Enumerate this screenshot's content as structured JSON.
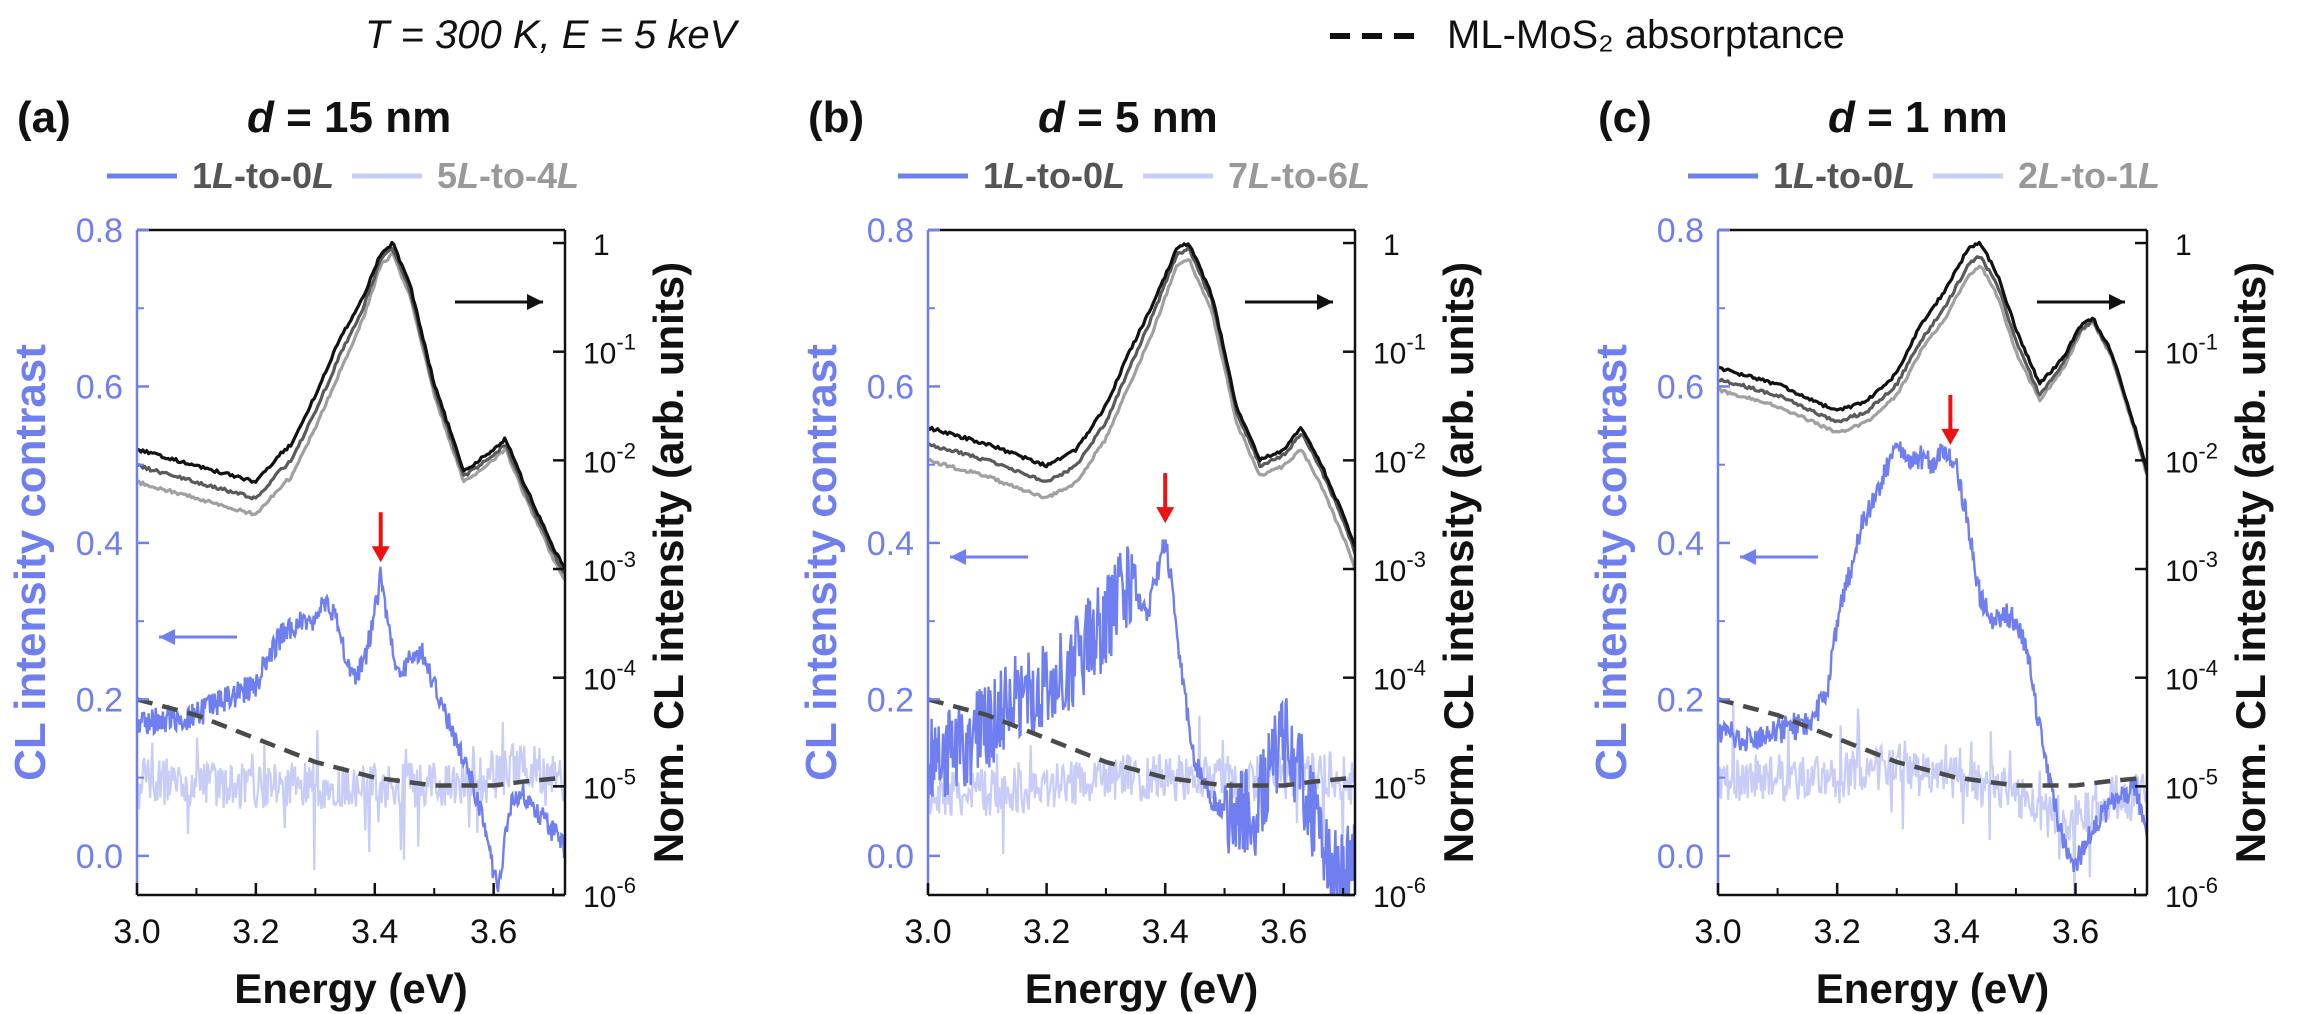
{
  "header": {
    "condition": "T = 300 K, E = 5 keV",
    "absorptance_legend": "ML-MoS₂ absorptance"
  },
  "colors": {
    "contrast_main": "#6f7ff0",
    "contrast_light": "#c7cdf7",
    "spectrum_dark": "#111111",
    "spectrum_mid": "#5a5a5a",
    "spectrum_light": "#a0a0a0",
    "absorptance": "#4a4a4a",
    "arrow_red": "#ee1111",
    "left_axis": "#6f7ff0"
  },
  "chart_data": [
    {
      "type": "line",
      "panel_label": "(a)",
      "title": "d = 15 nm",
      "xlabel": "Energy (eV)",
      "ylabel_left": "CL intensity contrast",
      "ylabel_right": "Norm. CL intensity (arb. units)",
      "xlim": [
        3.0,
        3.72
      ],
      "ylim_left": [
        -0.05,
        0.8
      ],
      "ylim_right_log10": [
        -6,
        0.12
      ],
      "x_ticks": [
        "3.0",
        "3.2",
        "3.4",
        "3.6"
      ],
      "y_left_ticks": [
        "0.0",
        "0.2",
        "0.4",
        "0.6",
        "0.8"
      ],
      "y_right_ticks": [
        "10-6",
        "10-5",
        "10-4",
        "10-3",
        "10-2",
        "10-1",
        "1"
      ],
      "legend": [
        {
          "label": "1L-to-0L",
          "style": "main"
        },
        {
          "label": "5L-to-4L",
          "style": "light"
        }
      ],
      "red_arrow_energy": 3.41,
      "contrast_main": {
        "x": [
          3.0,
          3.05,
          3.1,
          3.15,
          3.2,
          3.24,
          3.28,
          3.3,
          3.32,
          3.34,
          3.36,
          3.38,
          3.4,
          3.41,
          3.42,
          3.44,
          3.46,
          3.48,
          3.5,
          3.54,
          3.57,
          3.59,
          3.6,
          3.61,
          3.62,
          3.63,
          3.65,
          3.68,
          3.7,
          3.72
        ],
        "y": [
          0.17,
          0.175,
          0.18,
          0.2,
          0.22,
          0.28,
          0.3,
          0.3,
          0.33,
          0.29,
          0.23,
          0.24,
          0.31,
          0.36,
          0.3,
          0.23,
          0.25,
          0.26,
          0.22,
          0.14,
          0.08,
          0.02,
          -0.02,
          -0.04,
          0.03,
          0.07,
          0.08,
          0.05,
          0.03,
          0.01
        ]
      },
      "contrast_light": {
        "x": [
          3.0,
          3.1,
          3.2,
          3.3,
          3.4,
          3.5,
          3.6,
          3.65,
          3.7,
          3.72
        ],
        "y": [
          0.1,
          0.09,
          0.09,
          0.09,
          0.09,
          0.09,
          0.1,
          0.12,
          0.1,
          0.09
        ]
      },
      "spectra_log10": [
        {
          "shade": "dark",
          "x": [
            3.0,
            3.1,
            3.2,
            3.24,
            3.26,
            3.3,
            3.34,
            3.38,
            3.41,
            3.43,
            3.46,
            3.5,
            3.55,
            3.6,
            3.62,
            3.65,
            3.7,
            3.72
          ],
          "y": [
            -1.9,
            -2.05,
            -2.2,
            -1.95,
            -1.85,
            -1.4,
            -0.9,
            -0.5,
            -0.1,
            0.0,
            -0.4,
            -1.3,
            -2.1,
            -1.9,
            -1.8,
            -2.2,
            -2.8,
            -3.0
          ]
        },
        {
          "shade": "mid",
          "x": [
            3.0,
            3.1,
            3.2,
            3.24,
            3.26,
            3.3,
            3.34,
            3.38,
            3.41,
            3.43,
            3.46,
            3.5,
            3.55,
            3.6,
            3.62,
            3.65,
            3.7,
            3.72
          ],
          "y": [
            -2.05,
            -2.2,
            -2.35,
            -2.1,
            -2.0,
            -1.55,
            -1.05,
            -0.6,
            -0.15,
            -0.05,
            -0.45,
            -1.35,
            -2.15,
            -1.95,
            -1.85,
            -2.25,
            -2.85,
            -3.05
          ]
        },
        {
          "shade": "light",
          "x": [
            3.0,
            3.1,
            3.2,
            3.24,
            3.26,
            3.3,
            3.34,
            3.38,
            3.41,
            3.43,
            3.46,
            3.5,
            3.55,
            3.6,
            3.62,
            3.65,
            3.7,
            3.72
          ],
          "y": [
            -2.2,
            -2.35,
            -2.5,
            -2.25,
            -2.15,
            -1.7,
            -1.2,
            -0.7,
            -0.2,
            -0.1,
            -0.5,
            -1.4,
            -2.2,
            -2.0,
            -1.9,
            -2.3,
            -2.9,
            -3.1
          ]
        }
      ],
      "absorptance": {
        "x": [
          3.0,
          3.1,
          3.2,
          3.3,
          3.4,
          3.45,
          3.5,
          3.55,
          3.6,
          3.65,
          3.72
        ],
        "y": [
          0.2,
          0.18,
          0.15,
          0.12,
          0.1,
          0.095,
          0.09,
          0.09,
          0.09,
          0.095,
          0.1
        ]
      }
    },
    {
      "type": "line",
      "panel_label": "(b)",
      "title": "d = 5 nm",
      "xlabel": "Energy (eV)",
      "ylabel_left": "CL intensity contrast",
      "ylabel_right": "Norm. CL intensity (arb. units)",
      "xlim": [
        3.0,
        3.72
      ],
      "ylim_left": [
        -0.05,
        0.8
      ],
      "ylim_right_log10": [
        -6,
        0.12
      ],
      "x_ticks": [
        "3.0",
        "3.2",
        "3.4",
        "3.6"
      ],
      "y_left_ticks": [
        "0.0",
        "0.2",
        "0.4",
        "0.6",
        "0.8"
      ],
      "y_right_ticks": [
        "10-6",
        "10-5",
        "10-4",
        "10-3",
        "10-2",
        "10-1",
        "1"
      ],
      "legend": [
        {
          "label": "1L-to-0L",
          "style": "main"
        },
        {
          "label": "7L-to-6L",
          "style": "light"
        }
      ],
      "red_arrow_energy": 3.4,
      "contrast_main": {
        "x": [
          3.0,
          3.05,
          3.1,
          3.15,
          3.2,
          3.25,
          3.3,
          3.33,
          3.35,
          3.37,
          3.39,
          3.4,
          3.41,
          3.43,
          3.45,
          3.48,
          3.5,
          3.55,
          3.58,
          3.6,
          3.62,
          3.65,
          3.68,
          3.7,
          3.72
        ],
        "y": [
          0.12,
          0.14,
          0.16,
          0.2,
          0.22,
          0.25,
          0.3,
          0.34,
          0.33,
          0.31,
          0.37,
          0.41,
          0.35,
          0.22,
          0.12,
          0.07,
          0.06,
          0.05,
          0.12,
          0.15,
          0.12,
          0.05,
          -0.02,
          -0.03,
          0.0
        ]
      },
      "contrast_light": {
        "x": [
          3.0,
          3.1,
          3.2,
          3.3,
          3.4,
          3.5,
          3.6,
          3.65,
          3.7,
          3.72
        ],
        "y": [
          0.08,
          0.08,
          0.09,
          0.1,
          0.1,
          0.1,
          0.1,
          0.11,
          0.1,
          0.09
        ]
      },
      "spectra_log10": [
        {
          "shade": "dark",
          "x": [
            3.0,
            3.1,
            3.2,
            3.25,
            3.3,
            3.34,
            3.38,
            3.42,
            3.44,
            3.48,
            3.52,
            3.56,
            3.6,
            3.63,
            3.66,
            3.7,
            3.72
          ],
          "y": [
            -1.7,
            -1.85,
            -2.05,
            -1.9,
            -1.5,
            -1.0,
            -0.55,
            -0.05,
            0.0,
            -0.5,
            -1.5,
            -2.0,
            -1.9,
            -1.7,
            -2.0,
            -2.5,
            -2.8
          ]
        },
        {
          "shade": "mid",
          "x": [
            3.0,
            3.1,
            3.2,
            3.25,
            3.3,
            3.34,
            3.38,
            3.42,
            3.44,
            3.48,
            3.52,
            3.56,
            3.6,
            3.63,
            3.66,
            3.7,
            3.72
          ],
          "y": [
            -1.85,
            -2.0,
            -2.2,
            -2.05,
            -1.65,
            -1.15,
            -0.65,
            -0.1,
            -0.05,
            -0.55,
            -1.55,
            -2.05,
            -1.95,
            -1.75,
            -2.05,
            -2.55,
            -2.85
          ]
        },
        {
          "shade": "light",
          "x": [
            3.0,
            3.1,
            3.2,
            3.25,
            3.3,
            3.34,
            3.38,
            3.42,
            3.44,
            3.48,
            3.52,
            3.56,
            3.6,
            3.63,
            3.66,
            3.7,
            3.72
          ],
          "y": [
            -2.0,
            -2.15,
            -2.35,
            -2.2,
            -1.8,
            -1.3,
            -0.8,
            -0.2,
            -0.15,
            -0.65,
            -1.65,
            -2.15,
            -2.05,
            -1.9,
            -2.2,
            -2.7,
            -3.0
          ]
        }
      ],
      "absorptance": {
        "x": [
          3.0,
          3.1,
          3.2,
          3.3,
          3.4,
          3.45,
          3.5,
          3.55,
          3.6,
          3.65,
          3.72
        ],
        "y": [
          0.2,
          0.18,
          0.15,
          0.12,
          0.1,
          0.095,
          0.09,
          0.09,
          0.09,
          0.095,
          0.1
        ]
      }
    },
    {
      "type": "line",
      "panel_label": "(c)",
      "title": "d = 1 nm",
      "xlabel": "Energy (eV)",
      "ylabel_left": "CL intensity contrast",
      "ylabel_right": "Norm. CL intensity (arb. units)",
      "xlim": [
        3.0,
        3.72
      ],
      "ylim_left": [
        -0.05,
        0.8
      ],
      "ylim_right_log10": [
        -6,
        0.12
      ],
      "x_ticks": [
        "3.0",
        "3.2",
        "3.4",
        "3.6"
      ],
      "y_left_ticks": [
        "0.0",
        "0.2",
        "0.4",
        "0.6",
        "0.8"
      ],
      "y_right_ticks": [
        "10-6",
        "10-5",
        "10-4",
        "10-3",
        "10-2",
        "10-1",
        "1"
      ],
      "legend": [
        {
          "label": "1L-to-0L",
          "style": "main"
        },
        {
          "label": "2L-to-1L",
          "style": "light"
        }
      ],
      "red_arrow_energy": 3.39,
      "contrast_main": {
        "x": [
          3.0,
          3.05,
          3.1,
          3.15,
          3.18,
          3.2,
          3.24,
          3.28,
          3.3,
          3.32,
          3.34,
          3.36,
          3.38,
          3.4,
          3.42,
          3.44,
          3.46,
          3.48,
          3.5,
          3.52,
          3.54,
          3.56,
          3.58,
          3.6,
          3.62,
          3.64,
          3.67,
          3.7,
          3.72
        ],
        "y": [
          0.16,
          0.15,
          0.16,
          0.17,
          0.2,
          0.3,
          0.42,
          0.49,
          0.53,
          0.5,
          0.51,
          0.5,
          0.52,
          0.5,
          0.42,
          0.33,
          0.3,
          0.31,
          0.3,
          0.26,
          0.16,
          0.08,
          0.02,
          -0.01,
          0.02,
          0.05,
          0.07,
          0.09,
          0.02
        ]
      },
      "contrast_light": {
        "x": [
          3.0,
          3.1,
          3.2,
          3.3,
          3.4,
          3.5,
          3.55,
          3.6,
          3.65,
          3.7,
          3.72
        ],
        "y": [
          0.1,
          0.1,
          0.1,
          0.12,
          0.1,
          0.08,
          0.05,
          0.05,
          0.07,
          0.08,
          0.08
        ]
      },
      "spectra_log10": [
        {
          "shade": "dark",
          "x": [
            3.0,
            3.1,
            3.2,
            3.25,
            3.3,
            3.34,
            3.38,
            3.42,
            3.44,
            3.47,
            3.5,
            3.54,
            3.58,
            3.61,
            3.63,
            3.66,
            3.7,
            3.72
          ],
          "y": [
            -1.15,
            -1.3,
            -1.55,
            -1.45,
            -1.2,
            -0.75,
            -0.45,
            -0.05,
            0.0,
            -0.3,
            -0.8,
            -1.3,
            -1.05,
            -0.75,
            -0.7,
            -1.0,
            -1.7,
            -2.1
          ]
        },
        {
          "shade": "mid",
          "x": [
            3.0,
            3.1,
            3.2,
            3.25,
            3.3,
            3.34,
            3.38,
            3.42,
            3.44,
            3.47,
            3.5,
            3.54,
            3.58,
            3.61,
            3.63,
            3.66,
            3.7,
            3.72
          ],
          "y": [
            -1.25,
            -1.4,
            -1.65,
            -1.55,
            -1.3,
            -0.9,
            -0.6,
            -0.2,
            -0.12,
            -0.4,
            -0.9,
            -1.4,
            -1.1,
            -0.78,
            -0.72,
            -1.02,
            -1.72,
            -2.12
          ]
        },
        {
          "shade": "light",
          "x": [
            3.0,
            3.1,
            3.2,
            3.25,
            3.3,
            3.34,
            3.38,
            3.42,
            3.44,
            3.47,
            3.5,
            3.54,
            3.58,
            3.61,
            3.63,
            3.66,
            3.7,
            3.72
          ],
          "y": [
            -1.35,
            -1.5,
            -1.75,
            -1.65,
            -1.4,
            -1.0,
            -0.7,
            -0.3,
            -0.2,
            -0.5,
            -1.0,
            -1.45,
            -1.15,
            -0.8,
            -0.74,
            -1.04,
            -1.74,
            -2.14
          ]
        }
      ],
      "absorptance": {
        "x": [
          3.0,
          3.1,
          3.2,
          3.3,
          3.4,
          3.45,
          3.5,
          3.55,
          3.6,
          3.65,
          3.72
        ],
        "y": [
          0.2,
          0.18,
          0.15,
          0.12,
          0.1,
          0.095,
          0.09,
          0.09,
          0.09,
          0.095,
          0.1
        ]
      }
    }
  ]
}
